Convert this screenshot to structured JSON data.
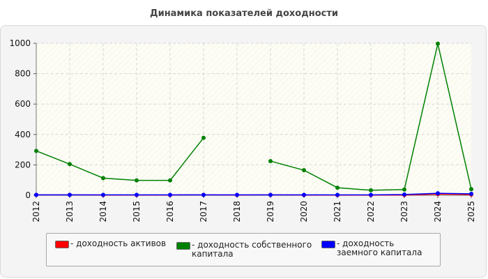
{
  "chart_data": {
    "type": "line",
    "title": "Динамика показателей доходности",
    "categories": [
      "2012",
      "2013",
      "2014",
      "2015",
      "2016",
      "2017",
      "2018",
      "2019",
      "2020",
      "2021",
      "2022",
      "2023",
      "2024",
      "2025"
    ],
    "ylim": [
      0,
      1000
    ],
    "yticks": [
      0,
      200,
      400,
      600,
      800,
      1000
    ],
    "grid": true,
    "legend_position": "bottom",
    "series": [
      {
        "name": "- доходность активов",
        "color": "#ff0000",
        "values": [
          3,
          3,
          2,
          2,
          2,
          3,
          2,
          3,
          2,
          1,
          1,
          2,
          8,
          5
        ]
      },
      {
        "name": "- доходность собственного капитала",
        "color": "#008000",
        "values": [
          292,
          205,
          113,
          98,
          98,
          378,
          null,
          225,
          165,
          50,
          33,
          38,
          997,
          40
        ]
      },
      {
        "name": "- доходность заемного капитала",
        "color": "#0000ff",
        "values": [
          3,
          3,
          3,
          3,
          3,
          3,
          3,
          3,
          3,
          3,
          3,
          5,
          13,
          10
        ]
      }
    ]
  }
}
